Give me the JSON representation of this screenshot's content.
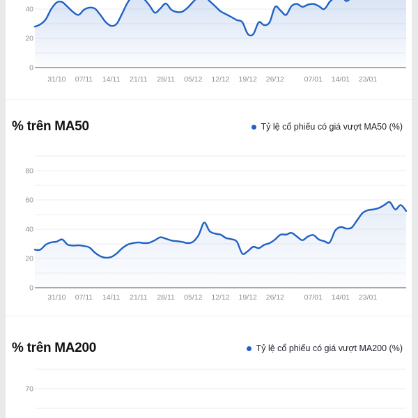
{
  "colors": {
    "accent_blue": "#2061c4",
    "grid_line": "#eeeeee",
    "zero_axis": "#a9a9a9",
    "tick_text": "#8d8d8d",
    "heading_text": "#111111",
    "legend_text": "#1b1f27",
    "card_bg": "#ffffff",
    "page_bg": "#e9e9e9"
  },
  "chart_data": [
    {
      "type": "line",
      "x_tick_labels": [
        "31/10",
        "07/11",
        "14/11",
        "21/11",
        "28/11",
        "05/12",
        "12/12",
        "19/12",
        "26/12",
        "07/01",
        "14/01",
        "23/01"
      ],
      "x_tick_indices": [
        4,
        9,
        14,
        19,
        24,
        29,
        34,
        39,
        44,
        51,
        56,
        61
      ],
      "y_ticks": [
        {
          "value": 40,
          "label": "40"
        },
        {
          "value": 20,
          "label": "20"
        },
        {
          "value": 0,
          "label": "0"
        }
      ],
      "grid_step": 10,
      "ylim_visible": [
        0,
        46
      ],
      "values": [
        28,
        29.5,
        33,
        40,
        44.5,
        44.8,
        41.5,
        38,
        36,
        39.5,
        41,
        40.3,
        36,
        31,
        28.5,
        30,
        37,
        44.5,
        49,
        51,
        47,
        42.5,
        37.5,
        40.5,
        43.8,
        39.5,
        38,
        38.2,
        41,
        45,
        48.5,
        49,
        45.5,
        42,
        38.5,
        36.5,
        34.5,
        32.5,
        31,
        23,
        22.8,
        31,
        29,
        31,
        41.5,
        39,
        36,
        42,
        43.5,
        41.5,
        43,
        43.5,
        42,
        40,
        45,
        48,
        50,
        45.5,
        48,
        51,
        53,
        54,
        55,
        56,
        55,
        56,
        57,
        56,
        57
      ]
    },
    {
      "type": "line",
      "title": "% trên MA50",
      "legend": "Tỷ lệ cổ phiếu có giá vượt MA50 (%)",
      "x_tick_labels": [
        "31/10",
        "07/11",
        "14/11",
        "21/11",
        "28/11",
        "05/12",
        "12/12",
        "19/12",
        "26/12",
        "07/01",
        "14/01",
        "23/01"
      ],
      "x_tick_indices": [
        4,
        9,
        14,
        19,
        24,
        29,
        34,
        39,
        44,
        51,
        56,
        61
      ],
      "y_ticks": [
        {
          "value": 80,
          "label": "80"
        },
        {
          "value": 60,
          "label": "60"
        },
        {
          "value": 40,
          "label": "40"
        },
        {
          "value": 20,
          "label": "20"
        },
        {
          "value": 0,
          "label": "0"
        }
      ],
      "grid_step": 10,
      "ylim_visible": [
        0,
        90
      ],
      "values": [
        26,
        26,
        29.5,
        31,
        31.5,
        33,
        29.5,
        28.8,
        29,
        28.5,
        27.5,
        24,
        21.5,
        20.5,
        21,
        23.5,
        27,
        29.5,
        30.5,
        31,
        30.5,
        30.8,
        32.5,
        34.5,
        33.5,
        32.3,
        31.8,
        31.3,
        30.5,
        31.5,
        36,
        44.5,
        38.7,
        37,
        36.3,
        34,
        33.2,
        31.5,
        23.3,
        25,
        28,
        27,
        29.3,
        30.5,
        33,
        36.3,
        36.3,
        37.5,
        35,
        32.5,
        35,
        36,
        33,
        31.8,
        31,
        39,
        41.5,
        40.5,
        41,
        46,
        51,
        53,
        53.5,
        54.5,
        56.5,
        58.5,
        53.5,
        56.5,
        52.5
      ]
    },
    {
      "type": "line",
      "title": "% trên MA200",
      "legend": "Tỷ lệ cổ phiếu có giá vượt MA200 (%)",
      "y_ticks": [
        {
          "value": 70,
          "label": "70"
        }
      ],
      "grid_step": 10,
      "values": []
    }
  ]
}
